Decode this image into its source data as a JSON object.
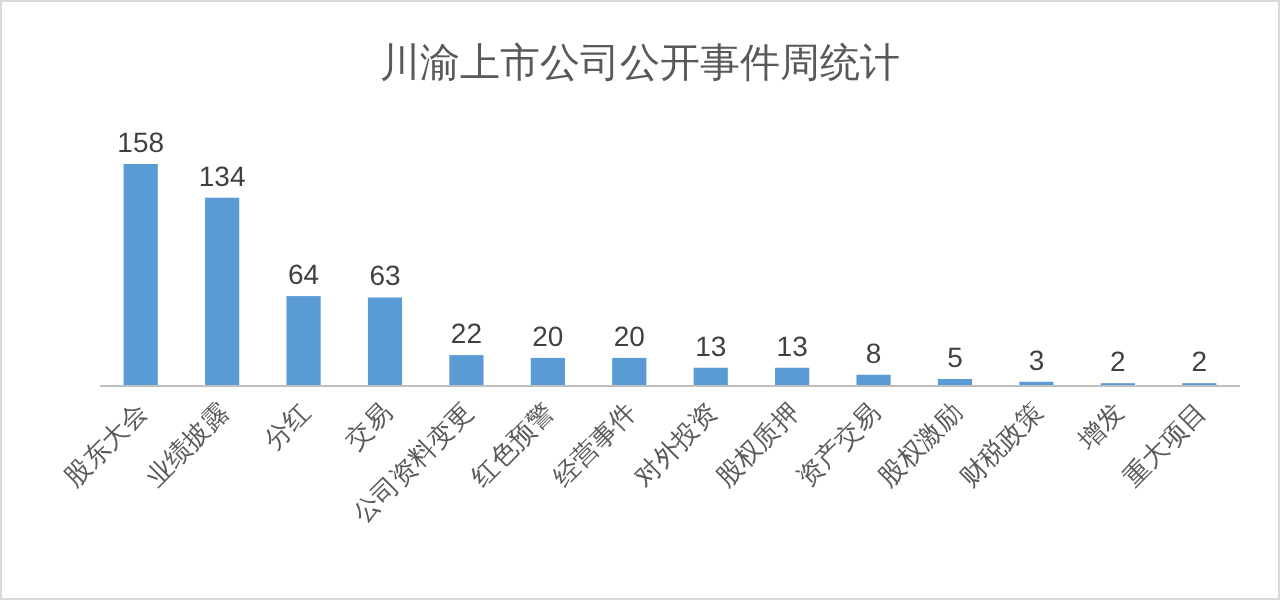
{
  "chart_data": {
    "type": "bar",
    "title": "川渝上市公司公开事件周统计",
    "categories": [
      "股东大会",
      "业绩披露",
      "分红",
      "交易",
      "公司资料变更",
      "红色预警",
      "经营事件",
      "对外投资",
      "股权质押",
      "资产交易",
      "股权激励",
      "财税政策",
      "增发",
      "重大项目"
    ],
    "values": [
      158,
      134,
      64,
      63,
      22,
      20,
      20,
      13,
      13,
      8,
      5,
      3,
      2,
      2
    ],
    "color": "#5b9bd5",
    "data_labels": true
  }
}
